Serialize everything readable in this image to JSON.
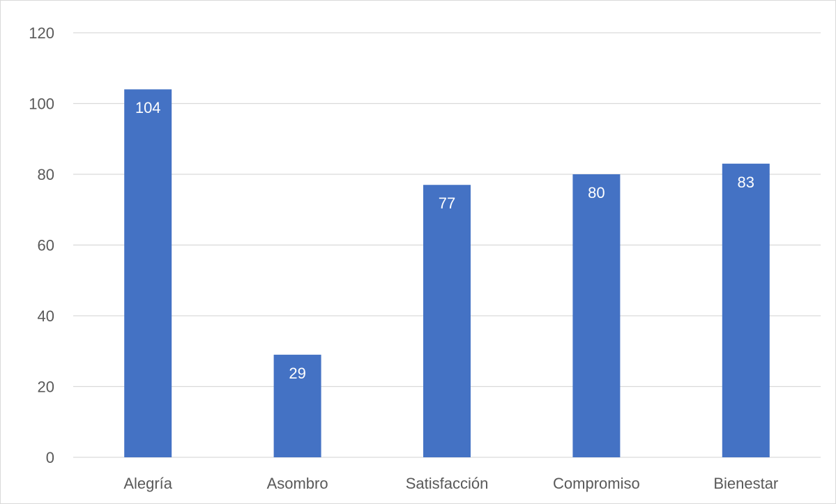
{
  "chart_data": {
    "type": "bar",
    "categories": [
      "Alegría",
      "Asombro",
      "Satisfacción",
      "Compromiso",
      "Bienestar"
    ],
    "values": [
      104,
      29,
      77,
      80,
      83
    ],
    "data_labels": [
      "104",
      "29",
      "77",
      "80",
      "83"
    ],
    "ylim": [
      0,
      120
    ],
    "yticks": [
      0,
      20,
      40,
      60,
      80,
      100,
      120
    ],
    "ytick_labels": [
      "0",
      "20",
      "40",
      "60",
      "80",
      "100",
      "120"
    ],
    "title": "",
    "xlabel": "",
    "ylabel": "",
    "grid": true,
    "legend": "none",
    "bar_color": "#4472c4",
    "grid_color": "#d9d9d9",
    "label_color": "#595959",
    "data_label_color": "#ffffff"
  }
}
